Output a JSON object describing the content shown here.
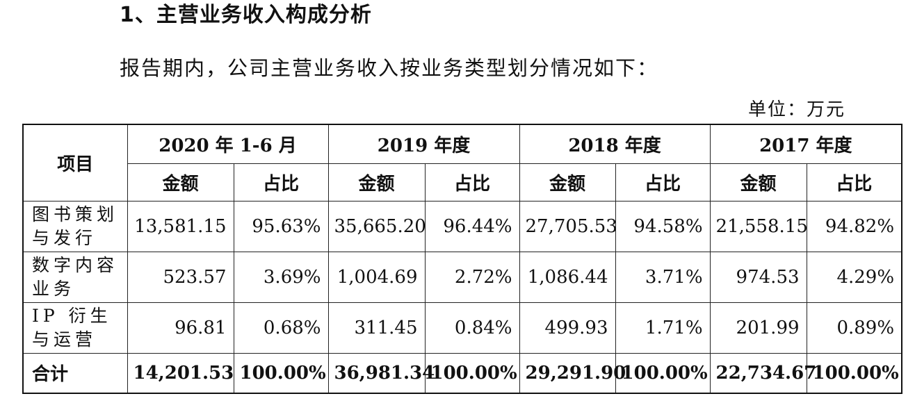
{
  "heading": "1、主营业务收入构成分析",
  "intro": "报告期内，公司主营业务收入按业务类型划分情况如下：",
  "unit": "单位：万元",
  "table": {
    "item_header": "项目",
    "periods": [
      "2020 年 1-6 月",
      "2019 年度",
      "2018 年度",
      "2017 年度"
    ],
    "sub_headers": [
      "金额",
      "占比"
    ],
    "rows": [
      {
        "name": "图书策划与发行",
        "cells": [
          "13,581.15",
          "95.63%",
          "35,665.20",
          "96.44%",
          "27,705.53",
          "94.58%",
          "21,558.15",
          "94.82%"
        ]
      },
      {
        "name": "数字内容业务",
        "cells": [
          "523.57",
          "3.69%",
          "1,004.69",
          "2.72%",
          "1,086.44",
          "3.71%",
          "974.53",
          "4.29%"
        ]
      },
      {
        "name": "IP 衍生与运营",
        "cells": [
          "96.81",
          "0.68%",
          "311.45",
          "0.84%",
          "499.93",
          "1.71%",
          "201.99",
          "0.89%"
        ]
      }
    ],
    "total": {
      "name": "合计",
      "cells": [
        "14,201.53",
        "100.00%",
        "36,981.34",
        "100.00%",
        "29,291.90",
        "100.00%",
        "22,734.67",
        "100.00%"
      ]
    }
  }
}
